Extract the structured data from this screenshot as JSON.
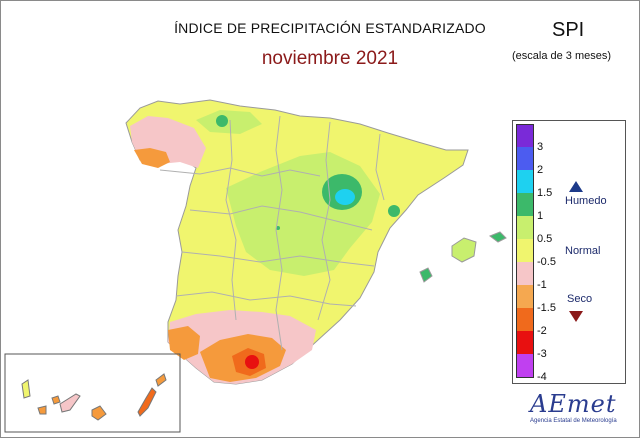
{
  "title": "ÍNDICE DE PRECIPITACIÓN ESTANDARIZADO",
  "subtitle": "noviembre 2021",
  "index_label": "SPI",
  "scale_label": "(escala de 3 meses)",
  "colors": {
    "title_red": "#8b1a1a",
    "legend_blue": "#1c2a6b",
    "normal_yellow": "#f0f56e",
    "light_green": "#c8ef6e",
    "green": "#3cb96a",
    "cyan": "#1ed1f0",
    "pink": "#f6c6c8",
    "orange": "#f59a3c",
    "dark_orange": "#f06a1c",
    "red": "#e81010"
  },
  "legend": {
    "bins": [
      {
        "color": "#7a2ad8"
      },
      {
        "color": "#4c5cf0"
      },
      {
        "color": "#1ed1f0"
      },
      {
        "color": "#3cb96a"
      },
      {
        "color": "#c8ef6e"
      },
      {
        "color": "#f0f56e"
      },
      {
        "color": "#f6c6c8"
      },
      {
        "color": "#f5a850"
      },
      {
        "color": "#f06a1c"
      },
      {
        "color": "#e81010"
      },
      {
        "color": "#c040f0"
      }
    ],
    "ticks": [
      "3",
      "2",
      "1.5",
      "1",
      "0.5",
      "-0.5",
      "-1",
      "-1.5",
      "-2",
      "-3",
      "-4"
    ],
    "categories": {
      "humid": "Humedo",
      "normal": "Normal",
      "dry": "Seco"
    }
  },
  "logo": {
    "name": "AEmet",
    "subtitle": "Agencia Estatal de Meteorología"
  }
}
